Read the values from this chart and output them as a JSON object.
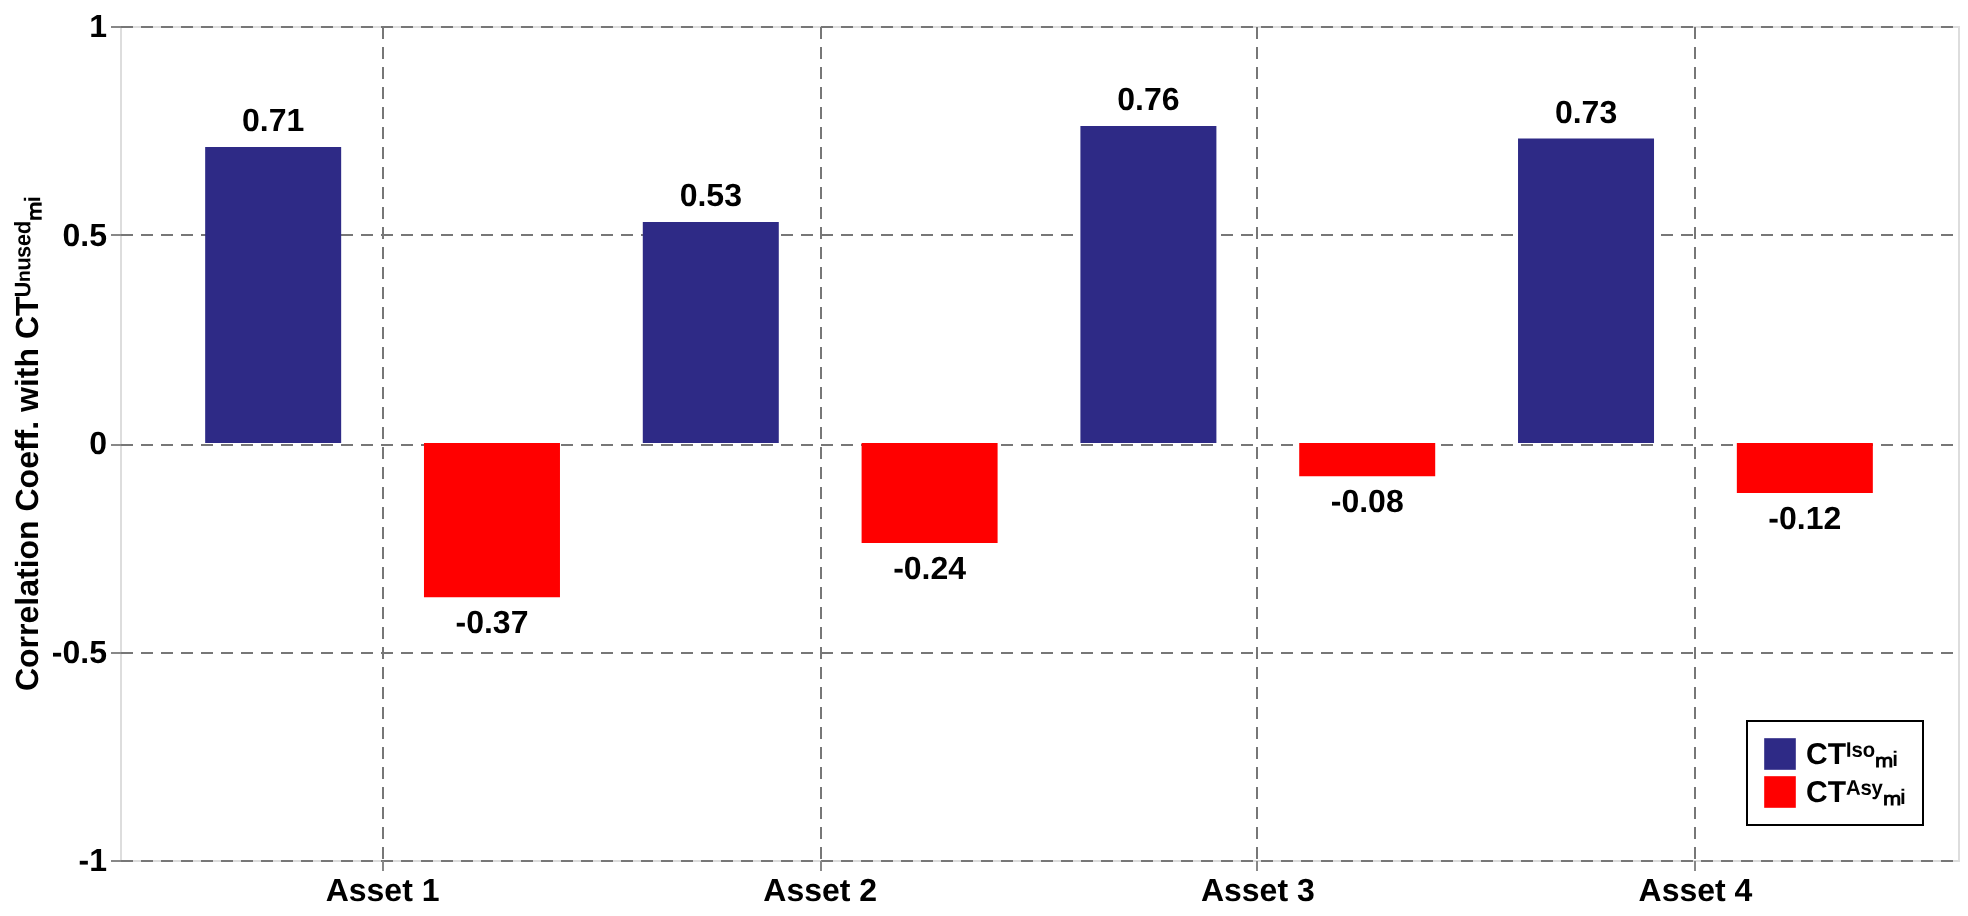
{
  "chart_data": {
    "type": "bar",
    "ylabel": "Correlation Coeff. with CTᵁⁿᵘˢᵉᵈₘᵢ",
    "categories": [
      "Asset 1",
      "Asset 2",
      "Asset 3",
      "Asset 4"
    ],
    "series": [
      {
        "name": "CTᴵˢᵒₘᵢ",
        "color": "#2e2a86",
        "values": [
          0.71,
          0.53,
          0.76,
          0.73
        ]
      },
      {
        "name": "CTᴬˢʸₘᵢ",
        "color": "#ff0000",
        "values": [
          -0.37,
          -0.24,
          -0.08,
          -0.12
        ]
      }
    ],
    "ylim": [
      -1,
      1
    ],
    "yticks": [
      -1,
      -0.5,
      0,
      0.5,
      1
    ],
    "grid": true,
    "legend": "bottom right",
    "data_labels": true
  }
}
